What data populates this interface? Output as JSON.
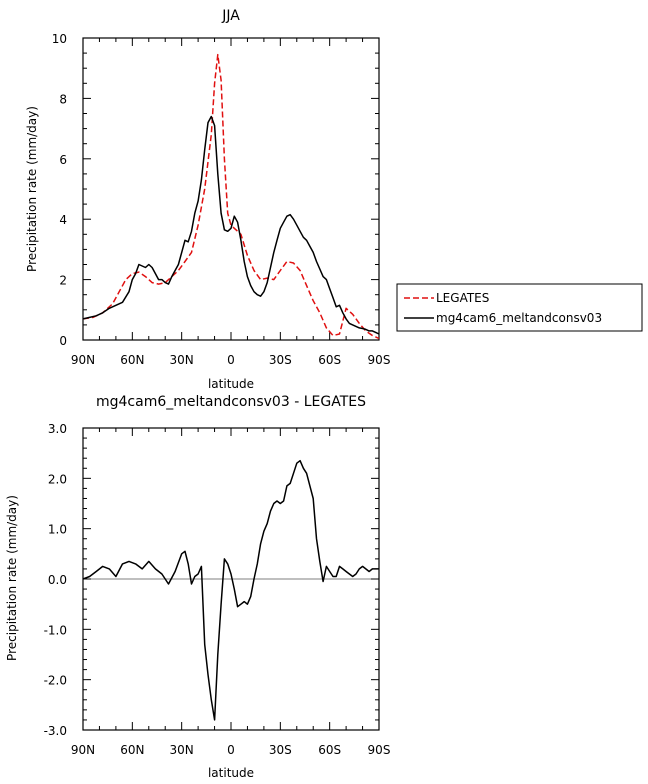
{
  "chart_data": [
    {
      "type": "line",
      "title": "JJA",
      "xlabel": "latitude",
      "ylabel": "Precipitation rate (mm/day)",
      "xlim": [
        90,
        -90
      ],
      "ylim": [
        0,
        10
      ],
      "x_ticks": [
        90,
        60,
        30,
        0,
        -30,
        -60,
        -90
      ],
      "x_tick_labels": [
        "90N",
        "60N",
        "30N",
        "0",
        "30S",
        "60S",
        "90S"
      ],
      "y_ticks": [
        0,
        2,
        4,
        6,
        8,
        10
      ],
      "y_tick_labels": [
        "0",
        "2",
        "4",
        "6",
        "8",
        "10"
      ],
      "legend": {
        "placement": "outside-right"
      },
      "series": [
        {
          "name": "LEGATES",
          "color": "#e01010",
          "dash": "dashed",
          "x": [
            90,
            84,
            78,
            72,
            68,
            64,
            60,
            56,
            52,
            48,
            44,
            40,
            36,
            32,
            28,
            24,
            20,
            16,
            12,
            10,
            8,
            6,
            4,
            2,
            0,
            -2,
            -4,
            -6,
            -10,
            -14,
            -18,
            -22,
            -26,
            -30,
            -34,
            -38,
            -42,
            -46,
            -50,
            -54,
            -58,
            -62,
            -66,
            -70,
            -74,
            -78,
            -82,
            -86,
            -90
          ],
          "values": [
            0.7,
            0.75,
            0.9,
            1.2,
            1.6,
            2.0,
            2.2,
            2.25,
            2.1,
            1.9,
            1.85,
            1.9,
            2.1,
            2.3,
            2.6,
            2.9,
            3.8,
            5.0,
            6.8,
            8.5,
            9.45,
            8.6,
            6.0,
            4.2,
            3.8,
            3.7,
            3.6,
            3.5,
            2.8,
            2.3,
            2.0,
            2.05,
            2.0,
            2.3,
            2.6,
            2.55,
            2.3,
            1.8,
            1.3,
            0.9,
            0.4,
            0.15,
            0.2,
            1.05,
            0.85,
            0.55,
            0.3,
            0.15,
            0.05
          ]
        },
        {
          "name": "mg4cam6_meltandconsv03",
          "color": "#000000",
          "dash": "solid",
          "x": [
            90,
            86,
            82,
            78,
            74,
            70,
            66,
            62,
            60,
            58,
            56,
            54,
            52,
            50,
            48,
            46,
            44,
            42,
            40,
            38,
            36,
            34,
            32,
            30,
            28,
            26,
            24,
            22,
            20,
            18,
            16,
            14,
            12,
            10,
            8,
            6,
            4,
            2,
            0,
            -2,
            -4,
            -6,
            -8,
            -10,
            -12,
            -14,
            -16,
            -18,
            -20,
            -22,
            -24,
            -26,
            -28,
            -30,
            -32,
            -34,
            -36,
            -38,
            -40,
            -42,
            -44,
            -46,
            -48,
            -50,
            -52,
            -54,
            -56,
            -58,
            -60,
            -62,
            -64,
            -66,
            -68,
            -70,
            -72,
            -74,
            -76,
            -78,
            -80,
            -82,
            -84,
            -86,
            -88,
            -90
          ],
          "values": [
            0.7,
            0.75,
            0.8,
            0.9,
            1.05,
            1.15,
            1.25,
            1.6,
            2.0,
            2.2,
            2.5,
            2.45,
            2.4,
            2.5,
            2.4,
            2.2,
            2.0,
            2.0,
            1.9,
            1.85,
            2.1,
            2.3,
            2.5,
            2.9,
            3.3,
            3.25,
            3.6,
            4.2,
            4.6,
            5.3,
            6.3,
            7.2,
            7.4,
            7.1,
            5.5,
            4.2,
            3.65,
            3.6,
            3.7,
            4.1,
            3.9,
            3.3,
            2.6,
            2.1,
            1.8,
            1.6,
            1.5,
            1.45,
            1.6,
            1.9,
            2.4,
            2.9,
            3.3,
            3.7,
            3.9,
            4.1,
            4.15,
            4.0,
            3.8,
            3.6,
            3.4,
            3.3,
            3.1,
            2.9,
            2.6,
            2.35,
            2.1,
            2.0,
            1.7,
            1.4,
            1.1,
            1.15,
            0.9,
            0.7,
            0.55,
            0.5,
            0.45,
            0.4,
            0.38,
            0.35,
            0.3,
            0.3,
            0.25,
            0.2
          ]
        }
      ]
    },
    {
      "type": "line",
      "title": "mg4cam6_meltandconsv03 - LEGATES",
      "xlabel": "latitude",
      "ylabel": "Precipitation rate (mm/day)",
      "xlim": [
        90,
        -90
      ],
      "ylim": [
        -3,
        3
      ],
      "x_ticks": [
        90,
        60,
        30,
        0,
        -30,
        -60,
        -90
      ],
      "x_tick_labels": [
        "90N",
        "60N",
        "30N",
        "0",
        "30S",
        "60S",
        "90S"
      ],
      "y_ticks": [
        3,
        2,
        1,
        0,
        -1,
        -2,
        -3
      ],
      "y_tick_labels": [
        "3.0",
        "2.0",
        "1.0",
        "0.0",
        "-1.0",
        "-2.0",
        "-3.0"
      ],
      "series": [
        {
          "color": "#000000",
          "dash": "solid",
          "x": [
            90,
            86,
            82,
            78,
            74,
            70,
            66,
            62,
            58,
            54,
            50,
            46,
            42,
            38,
            34,
            30,
            28,
            26,
            24,
            22,
            20,
            18,
            16,
            14,
            12,
            10,
            8,
            6,
            4,
            2,
            0,
            -2,
            -4,
            -6,
            -8,
            -10,
            -12,
            -14,
            -16,
            -18,
            -20,
            -22,
            -24,
            -26,
            -28,
            -30,
            -32,
            -34,
            -36,
            -38,
            -40,
            -42,
            -44,
            -46,
            -48,
            -50,
            -52,
            -54,
            -56,
            -58,
            -60,
            -62,
            -64,
            -66,
            -68,
            -70,
            -72,
            -74,
            -76,
            -78,
            -80,
            -82,
            -84,
            -86,
            -88,
            -90
          ],
          "values": [
            0.0,
            0.05,
            0.15,
            0.25,
            0.2,
            0.05,
            0.3,
            0.35,
            0.3,
            0.2,
            0.35,
            0.2,
            0.1,
            -0.1,
            0.15,
            0.5,
            0.55,
            0.3,
            -0.1,
            0.05,
            0.1,
            0.25,
            -1.3,
            -1.9,
            -2.4,
            -2.8,
            -1.5,
            -0.5,
            0.4,
            0.3,
            0.1,
            -0.2,
            -0.55,
            -0.5,
            -0.45,
            -0.5,
            -0.35,
            0.0,
            0.3,
            0.7,
            0.95,
            1.1,
            1.35,
            1.5,
            1.55,
            1.5,
            1.55,
            1.85,
            1.9,
            2.1,
            2.3,
            2.35,
            2.2,
            2.1,
            1.85,
            1.6,
            0.8,
            0.35,
            -0.05,
            0.25,
            0.15,
            0.05,
            0.05,
            0.25,
            0.2,
            0.15,
            0.1,
            0.05,
            0.1,
            0.2,
            0.25,
            0.2,
            0.15,
            0.2,
            0.2,
            0.2
          ]
        }
      ]
    }
  ]
}
